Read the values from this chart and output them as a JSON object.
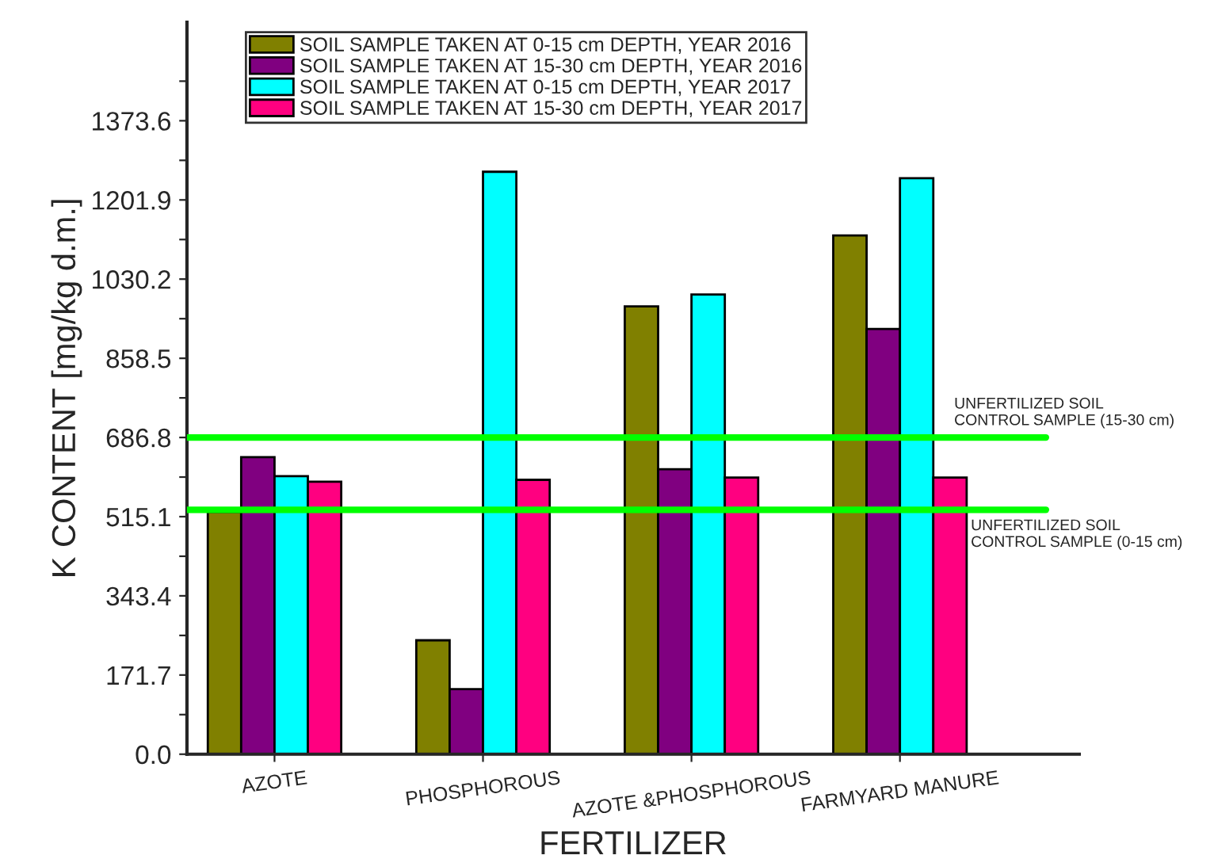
{
  "chart_data": {
    "type": "bar",
    "xlabel": "FERTILIZER",
    "ylabel": "K CONTENT [mg/kg d.m.]",
    "categories": [
      "AZOTE",
      "PHOSPHOROUS",
      "AZOTE &PHOSPHOROUS",
      "FARMYARD MANURE"
    ],
    "series": [
      {
        "name": "SOIL SAMPLE TAKEN AT 0-15 cm DEPTH, YEAR 2016",
        "color": "#808000",
        "values": [
          525,
          247,
          971,
          1125
        ]
      },
      {
        "name": "SOIL SAMPLE TAKEN AT 15-30 cm DEPTH, YEAR 2016",
        "color": "#800080",
        "values": [
          644,
          141,
          618,
          922
        ]
      },
      {
        "name": "SOIL SAMPLE TAKEN AT 0-15 cm DEPTH, YEAR 2017",
        "color": "#00ffff",
        "values": [
          603,
          1263,
          997,
          1249
        ]
      },
      {
        "name": "SOIL SAMPLE TAKEN AT 15-30 cm DEPTH, YEAR 2017",
        "color": "#ff0080",
        "values": [
          591,
          595,
          600,
          600
        ]
      }
    ],
    "ylim": [
      0,
      1587
    ],
    "yticks": [
      {
        "value": 0,
        "label": "0.0"
      },
      {
        "value": 85.85,
        "label": null
      },
      {
        "value": 171.7,
        "label": "171.7"
      },
      {
        "value": 257.55,
        "label": null
      },
      {
        "value": 343.4,
        "label": "343.4"
      },
      {
        "value": 429.25,
        "label": null
      },
      {
        "value": 515.1,
        "label": "515.1"
      },
      {
        "value": 600.95,
        "label": null
      },
      {
        "value": 686.8,
        "label": "686.8"
      },
      {
        "value": 772.65,
        "label": null
      },
      {
        "value": 858.5,
        "label": "858.5"
      },
      {
        "value": 944.35,
        "label": null
      },
      {
        "value": 1030.2,
        "label": "1030.2"
      },
      {
        "value": 1116.05,
        "label": null
      },
      {
        "value": 1201.9,
        "label": "1201.9"
      },
      {
        "value": 1287.75,
        "label": null
      },
      {
        "value": 1373.6,
        "label": "1373.6"
      },
      {
        "value": 1459.45,
        "label": null
      }
    ],
    "ref_lines": [
      {
        "axis": "y",
        "value": 686.8,
        "label": "UNFERTILIZED SOIL\nCONTROL SAMPLE (15-30 cm)",
        "color": "#00ff00"
      },
      {
        "axis": "y",
        "value": 530,
        "label": "UNFERTILIZED SOIL\nCONTROL SAMPLE (0-15 cm)",
        "color": "#00ff00"
      }
    ],
    "legend": "top",
    "grid": false
  }
}
